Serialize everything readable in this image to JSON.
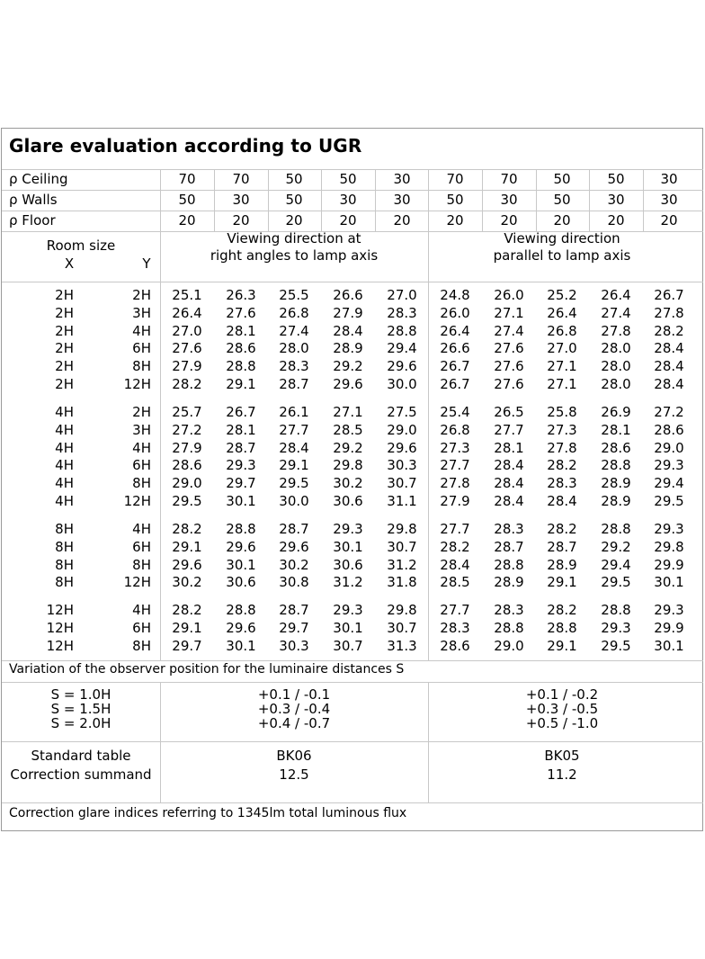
{
  "title": "Glare evaluation according to UGR",
  "reflectance": {
    "rows": [
      {
        "label": "ρ Ceiling",
        "values": [
          "70",
          "70",
          "50",
          "50",
          "30",
          "70",
          "70",
          "50",
          "50",
          "30"
        ]
      },
      {
        "label": "ρ Walls",
        "values": [
          "50",
          "30",
          "50",
          "30",
          "30",
          "50",
          "30",
          "50",
          "30",
          "30"
        ]
      },
      {
        "label": "ρ Floor",
        "values": [
          "20",
          "20",
          "20",
          "20",
          "20",
          "20",
          "20",
          "20",
          "20",
          "20"
        ]
      }
    ]
  },
  "header": {
    "room_size": "Room size",
    "x": "X",
    "y": "Y",
    "view_right_1": "Viewing direction at",
    "view_right_2": "right angles to lamp axis",
    "view_parallel_1": "Viewing direction",
    "view_parallel_2": "parallel to lamp axis"
  },
  "groups": [
    {
      "rows": [
        {
          "x": "2H",
          "y": "2H",
          "values": [
            "25.1",
            "26.3",
            "25.5",
            "26.6",
            "27.0",
            "24.8",
            "26.0",
            "25.2",
            "26.4",
            "26.7"
          ]
        },
        {
          "x": "2H",
          "y": "3H",
          "values": [
            "26.4",
            "27.6",
            "26.8",
            "27.9",
            "28.3",
            "26.0",
            "27.1",
            "26.4",
            "27.4",
            "27.8"
          ]
        },
        {
          "x": "2H",
          "y": "4H",
          "values": [
            "27.0",
            "28.1",
            "27.4",
            "28.4",
            "28.8",
            "26.4",
            "27.4",
            "26.8",
            "27.8",
            "28.2"
          ]
        },
        {
          "x": "2H",
          "y": "6H",
          "values": [
            "27.6",
            "28.6",
            "28.0",
            "28.9",
            "29.4",
            "26.6",
            "27.6",
            "27.0",
            "28.0",
            "28.4"
          ]
        },
        {
          "x": "2H",
          "y": "8H",
          "values": [
            "27.9",
            "28.8",
            "28.3",
            "29.2",
            "29.6",
            "26.7",
            "27.6",
            "27.1",
            "28.0",
            "28.4"
          ]
        },
        {
          "x": "2H",
          "y": "12H",
          "values": [
            "28.2",
            "29.1",
            "28.7",
            "29.6",
            "30.0",
            "26.7",
            "27.6",
            "27.1",
            "28.0",
            "28.4"
          ]
        }
      ]
    },
    {
      "rows": [
        {
          "x": "4H",
          "y": "2H",
          "values": [
            "25.7",
            "26.7",
            "26.1",
            "27.1",
            "27.5",
            "25.4",
            "26.5",
            "25.8",
            "26.9",
            "27.2"
          ]
        },
        {
          "x": "4H",
          "y": "3H",
          "values": [
            "27.2",
            "28.1",
            "27.7",
            "28.5",
            "29.0",
            "26.8",
            "27.7",
            "27.3",
            "28.1",
            "28.6"
          ]
        },
        {
          "x": "4H",
          "y": "4H",
          "values": [
            "27.9",
            "28.7",
            "28.4",
            "29.2",
            "29.6",
            "27.3",
            "28.1",
            "27.8",
            "28.6",
            "29.0"
          ]
        },
        {
          "x": "4H",
          "y": "6H",
          "values": [
            "28.6",
            "29.3",
            "29.1",
            "29.8",
            "30.3",
            "27.7",
            "28.4",
            "28.2",
            "28.8",
            "29.3"
          ]
        },
        {
          "x": "4H",
          "y": "8H",
          "values": [
            "29.0",
            "29.7",
            "29.5",
            "30.2",
            "30.7",
            "27.8",
            "28.4",
            "28.3",
            "28.9",
            "29.4"
          ]
        },
        {
          "x": "4H",
          "y": "12H",
          "values": [
            "29.5",
            "30.1",
            "30.0",
            "30.6",
            "31.1",
            "27.9",
            "28.4",
            "28.4",
            "28.9",
            "29.5"
          ]
        }
      ]
    },
    {
      "rows": [
        {
          "x": "8H",
          "y": "4H",
          "values": [
            "28.2",
            "28.8",
            "28.7",
            "29.3",
            "29.8",
            "27.7",
            "28.3",
            "28.2",
            "28.8",
            "29.3"
          ]
        },
        {
          "x": "8H",
          "y": "6H",
          "values": [
            "29.1",
            "29.6",
            "29.6",
            "30.1",
            "30.7",
            "28.2",
            "28.7",
            "28.7",
            "29.2",
            "29.8"
          ]
        },
        {
          "x": "8H",
          "y": "8H",
          "values": [
            "29.6",
            "30.1",
            "30.2",
            "30.6",
            "31.2",
            "28.4",
            "28.8",
            "28.9",
            "29.4",
            "29.9"
          ]
        },
        {
          "x": "8H",
          "y": "12H",
          "values": [
            "30.2",
            "30.6",
            "30.8",
            "31.2",
            "31.8",
            "28.5",
            "28.9",
            "29.1",
            "29.5",
            "30.1"
          ]
        }
      ]
    },
    {
      "rows": [
        {
          "x": "12H",
          "y": "4H",
          "values": [
            "28.2",
            "28.8",
            "28.7",
            "29.3",
            "29.8",
            "27.7",
            "28.3",
            "28.2",
            "28.8",
            "29.3"
          ]
        },
        {
          "x": "12H",
          "y": "6H",
          "values": [
            "29.1",
            "29.6",
            "29.7",
            "30.1",
            "30.7",
            "28.3",
            "28.8",
            "28.8",
            "29.3",
            "29.9"
          ]
        },
        {
          "x": "12H",
          "y": "8H",
          "values": [
            "29.7",
            "30.1",
            "30.3",
            "30.7",
            "31.3",
            "28.6",
            "29.0",
            "29.1",
            "29.5",
            "30.1"
          ]
        }
      ]
    }
  ],
  "variation": {
    "heading": "Variation of the observer position for the luminaire distances S",
    "s_labels": [
      "S = 1.0H",
      "S = 1.5H",
      "S = 2.0H"
    ],
    "right_angles": [
      "+0.1 / -0.1",
      "+0.3 / -0.4",
      "+0.4 / -0.7"
    ],
    "parallel": [
      "+0.1 / -0.2",
      "+0.3 / -0.5",
      "+0.5 / -1.0"
    ]
  },
  "standard": {
    "label_table": "Standard table",
    "label_correction": "Correction summand",
    "right_angles_table": "BK06",
    "right_angles_correction": "12.5",
    "parallel_table": "BK05",
    "parallel_correction": "11.2"
  },
  "footer": "Correction glare indices referring to 1345lm total luminous flux"
}
